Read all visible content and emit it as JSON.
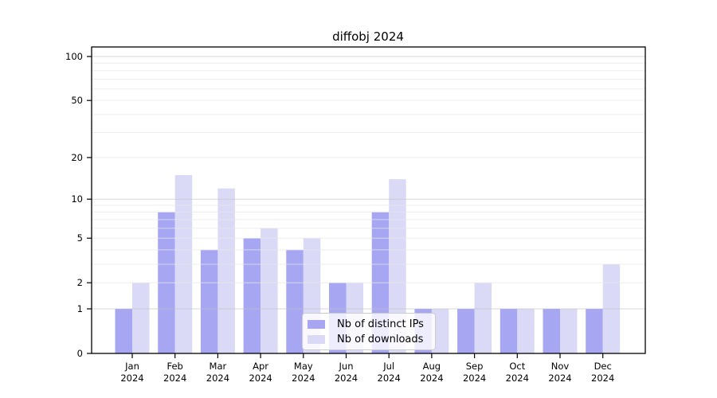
{
  "chart_data": {
    "type": "bar",
    "title": "diffobj 2024",
    "categories": [
      {
        "month": "Jan",
        "year": "2024"
      },
      {
        "month": "Feb",
        "year": "2024"
      },
      {
        "month": "Mar",
        "year": "2024"
      },
      {
        "month": "Apr",
        "year": "2024"
      },
      {
        "month": "May",
        "year": "2024"
      },
      {
        "month": "Jun",
        "year": "2024"
      },
      {
        "month": "Jul",
        "year": "2024"
      },
      {
        "month": "Aug",
        "year": "2024"
      },
      {
        "month": "Sep",
        "year": "2024"
      },
      {
        "month": "Oct",
        "year": "2024"
      },
      {
        "month": "Nov",
        "year": "2024"
      },
      {
        "month": "Dec",
        "year": "2024"
      }
    ],
    "series": [
      {
        "name": "Nb of distinct IPs",
        "color": "#a6a6f2",
        "values": [
          1,
          8,
          4,
          5,
          4,
          2,
          8,
          1,
          1,
          1,
          1,
          1
        ]
      },
      {
        "name": "Nb of downloads",
        "color": "#dadaf7",
        "values": [
          2,
          15,
          12,
          6,
          5,
          2,
          14,
          1,
          2,
          1,
          1,
          3
        ]
      }
    ],
    "y_axis": {
      "scale": "log1p",
      "range": [
        0,
        100
      ],
      "ticks": [
        0,
        1,
        2,
        5,
        10,
        20,
        50,
        100
      ],
      "major_gridlines": [
        1,
        10,
        100
      ],
      "minor_gridlines": [
        2,
        3,
        4,
        5,
        6,
        7,
        8,
        9,
        20,
        30,
        40,
        50,
        60,
        70,
        80,
        90
      ]
    },
    "legend_position": "inside-bottom-center",
    "grid": "on"
  },
  "colors": {
    "frame": "#000000",
    "text": "#000000",
    "grid_major": "#c2c2c2",
    "grid_minor": "#e7e7e7",
    "legend_border": "#cccccc",
    "background": "#ffffff"
  }
}
